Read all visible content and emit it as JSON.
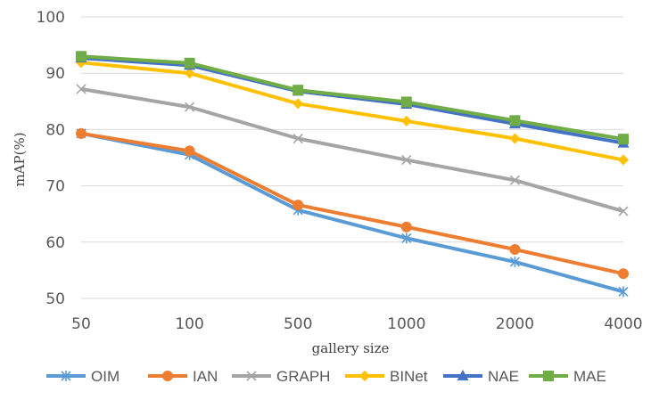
{
  "chart_data": {
    "type": "line",
    "xlabel": "gallery size",
    "ylabel": "mAP(%)",
    "categories": [
      "50",
      "100",
      "500",
      "1000",
      "2000",
      "4000"
    ],
    "ylim": [
      50,
      100
    ],
    "yticks": [
      "50",
      "60",
      "70",
      "80",
      "90",
      "100"
    ],
    "grid": true,
    "legend": "bottom",
    "series": [
      {
        "name": "OIM",
        "color": "#5b9bd5",
        "marker": "asterisk",
        "values": [
          79.3,
          75.5,
          65.7,
          60.7,
          56.5,
          51.2
        ]
      },
      {
        "name": "IAN",
        "color": "#ed7d31",
        "marker": "circle",
        "values": [
          79.3,
          76.2,
          66.6,
          62.7,
          58.7,
          54.4
        ]
      },
      {
        "name": "GRAPH",
        "color": "#a5a5a5",
        "marker": "x",
        "values": [
          87.2,
          84.0,
          78.4,
          74.6,
          71.0,
          65.5
        ]
      },
      {
        "name": "BINet",
        "color": "#ffc000",
        "marker": "diamond",
        "values": [
          91.9,
          90.0,
          84.6,
          81.5,
          78.4,
          74.6
        ]
      },
      {
        "name": "NAE",
        "color": "#4472c4",
        "marker": "triangle",
        "values": [
          92.7,
          91.4,
          86.8,
          84.5,
          81.0,
          77.6
        ]
      },
      {
        "name": "MAE",
        "color": "#70ad47",
        "marker": "square",
        "values": [
          93.0,
          91.8,
          87.0,
          84.9,
          81.6,
          78.3
        ]
      }
    ]
  }
}
